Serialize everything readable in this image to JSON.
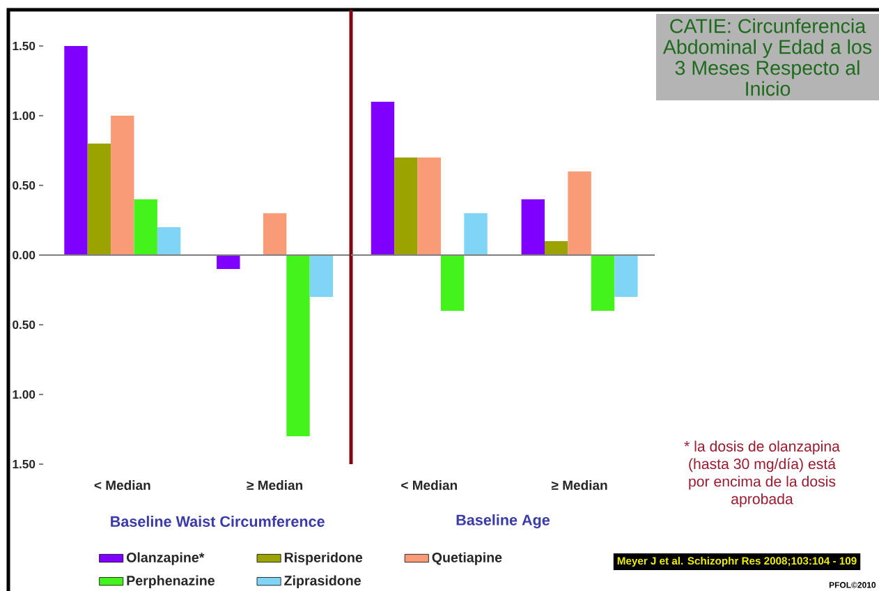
{
  "chart_data": [
    {
      "type": "bar",
      "categories": [
        "< Median",
        "≥ Median"
      ],
      "xlabel": "Baseline Waist Circumference",
      "series": [
        {
          "name": "Olanzapine*",
          "color": "#8000ff",
          "values": [
            1.5,
            -0.1
          ]
        },
        {
          "name": "Risperidone",
          "color": "#9aa300",
          "values": [
            0.8,
            null
          ]
        },
        {
          "name": "Quetiapine",
          "color": "#f89b76",
          "values": [
            1.0,
            0.3
          ]
        },
        {
          "name": "Perphenazine",
          "color": "#44f21c",
          "values": [
            0.4,
            -1.3
          ]
        },
        {
          "name": "Ziprasidone",
          "color": "#80d4f6",
          "values": [
            0.2,
            -0.3
          ]
        }
      ],
      "ylim": [
        -1.5,
        1.76
      ],
      "yticks": [
        {
          "value": 1.5,
          "label": "1.50"
        },
        {
          "value": 1,
          "label": "1.00"
        },
        {
          "value": 0.5,
          "label": "0.50"
        },
        {
          "value": 0,
          "label": "0.00"
        },
        {
          "value": -0.5,
          "label": "0.50"
        },
        {
          "value": -1,
          "label": "1.00"
        },
        {
          "value": -1.5,
          "label": "1.50"
        }
      ],
      "legend": "bottom",
      "annotations": [
        "* la dosis de olanzapina (hasta 30 mg/día) está por encima de la dosis aprobada",
        "Meyer J et al. Schizophr Res 2008;103:104 - 109",
        "PFOL©2010"
      ]
    },
    {
      "type": "bar",
      "title": "CATIE: Circunferencia Abdominal y Edad a los 3 Meses Respecto al Inicio",
      "categories": [
        "< Median",
        "≥ Median"
      ],
      "xlabel": "Baseline Age",
      "series": [
        {
          "color": "#8000ff",
          "values": [
            1.1,
            0.4
          ]
        },
        {
          "color": "#9aa300",
          "values": [
            0.7,
            0.1
          ]
        },
        {
          "color": "#f89b76",
          "values": [
            0.7,
            0.6
          ]
        },
        {
          "color": "#44f21c",
          "values": [
            -0.4,
            -0.4
          ]
        },
        {
          "color": "#80d4f6",
          "values": [
            0.3,
            -0.3
          ]
        }
      ],
      "ylim": [
        -1.5,
        1.76
      ],
      "tick_labels": "x"
    }
  ]
}
